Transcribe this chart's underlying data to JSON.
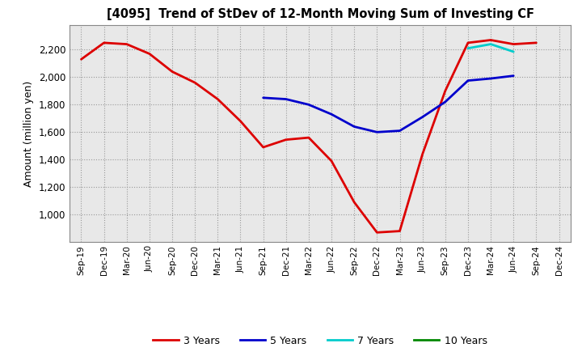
{
  "title": "[4095]  Trend of StDev of 12-Month Moving Sum of Investing CF",
  "ylabel": "Amount (million yen)",
  "background_color": "#ffffff",
  "grid_color": "#999999",
  "plot_bg_color": "#e8e8e8",
  "y_min": 800,
  "y_max": 2380,
  "yticks": [
    1000,
    1200,
    1400,
    1600,
    1800,
    2000,
    2200
  ],
  "x_labels": [
    "Sep-19",
    "Dec-19",
    "Mar-20",
    "Jun-20",
    "Sep-20",
    "Dec-20",
    "Mar-21",
    "Jun-21",
    "Sep-21",
    "Dec-21",
    "Mar-22",
    "Jun-22",
    "Sep-22",
    "Dec-22",
    "Mar-23",
    "Jun-23",
    "Sep-23",
    "Dec-23",
    "Mar-24",
    "Jun-24",
    "Sep-24",
    "Dec-24"
  ],
  "series_3y": [
    2130,
    2250,
    2240,
    2170,
    2040,
    1960,
    1840,
    1680,
    1490,
    1545,
    1560,
    1390,
    1090,
    870,
    880,
    1440,
    1900,
    2250,
    2270,
    2240,
    2250,
    null
  ],
  "series_5y": [
    null,
    null,
    null,
    null,
    null,
    null,
    null,
    null,
    1850,
    1840,
    1800,
    1730,
    1640,
    1600,
    1610,
    1710,
    1820,
    1975,
    1990,
    2010,
    null,
    null
  ],
  "series_7y": [
    null,
    null,
    null,
    null,
    null,
    null,
    null,
    null,
    null,
    null,
    null,
    null,
    null,
    null,
    null,
    null,
    null,
    2210,
    2240,
    2185,
    null,
    null
  ],
  "series_10y": [],
  "color_3y": "#dd0000",
  "color_5y": "#0000cc",
  "color_7y": "#00cccc",
  "color_10y": "#008800",
  "legend_labels": [
    "3 Years",
    "5 Years",
    "7 Years",
    "10 Years"
  ],
  "line_width": 2.0
}
